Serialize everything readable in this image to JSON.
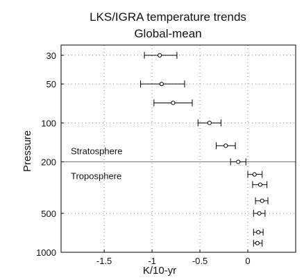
{
  "chart_data": {
    "type": "scatter",
    "title": "LKS/IGRA temperature trends",
    "subtitle": "Global-mean",
    "xlabel": "K/10-yr",
    "ylabel": "Pressure",
    "xlim": [
      -1.95,
      0.5
    ],
    "ylim": [
      1000,
      25
    ],
    "y_scale": "log",
    "grid": true,
    "x_ticks": [
      -1.5,
      -1,
      -0.5,
      0
    ],
    "x_tick_labels": [
      "-1.5",
      "-1",
      "-0.5",
      "0"
    ],
    "y_ticks": [
      30,
      50,
      100,
      200,
      500,
      1000
    ],
    "y_tick_labels": [
      "30",
      "50",
      "100",
      "200",
      "500",
      "1000"
    ],
    "annotations": [
      {
        "text": "Stratosphere"
      },
      {
        "text": "Troposphere"
      }
    ],
    "divider_pressure": 200,
    "points": [
      {
        "pressure": 30,
        "trend": -0.92,
        "low": -1.08,
        "high": -0.74
      },
      {
        "pressure": 50,
        "trend": -0.9,
        "low": -1.12,
        "high": -0.66
      },
      {
        "pressure": 70,
        "trend": -0.78,
        "low": -0.98,
        "high": -0.58
      },
      {
        "pressure": 100,
        "trend": -0.4,
        "low": -0.52,
        "high": -0.28
      },
      {
        "pressure": 150,
        "trend": -0.23,
        "low": -0.33,
        "high": -0.13
      },
      {
        "pressure": 200,
        "trend": -0.1,
        "low": -0.18,
        "high": -0.02
      },
      {
        "pressure": 250,
        "trend": 0.07,
        "low": 0.0,
        "high": 0.15
      },
      {
        "pressure": 300,
        "trend": 0.13,
        "low": 0.05,
        "high": 0.2
      },
      {
        "pressure": 400,
        "trend": 0.15,
        "low": 0.08,
        "high": 0.21
      },
      {
        "pressure": 500,
        "trend": 0.12,
        "low": 0.06,
        "high": 0.18
      },
      {
        "pressure": 700,
        "trend": 0.11,
        "low": 0.06,
        "high": 0.16
      },
      {
        "pressure": 850,
        "trend": 0.1,
        "low": 0.06,
        "high": 0.15
      }
    ]
  }
}
